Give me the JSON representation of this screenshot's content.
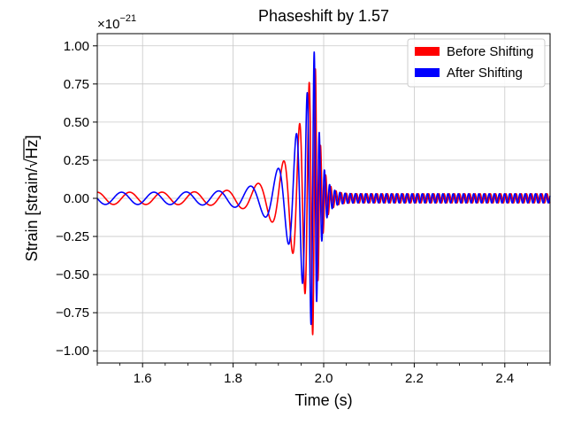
{
  "chart_data": {
    "type": "line",
    "title": "Phaseshift by 1.57",
    "xlabel": "Time (s)",
    "ylabel_text": "Strain [strain/",
    "ylabel_sqrt": "Hz",
    "ylabel_close": "]",
    "y_offset_base": "×10",
    "y_offset_exp": "−21",
    "xlim": [
      1.5,
      2.5
    ],
    "ylim": [
      -1.08,
      1.08
    ],
    "grid": true,
    "legend_placement": "top-right",
    "x_ticks": [
      1.6,
      1.8,
      2.0,
      2.2,
      2.4
    ],
    "x_tick_labels": [
      "1.6",
      "1.8",
      "2.0",
      "2.2",
      "2.4"
    ],
    "y_ticks": [
      -1.0,
      -0.75,
      -0.5,
      -0.25,
      0.0,
      0.25,
      0.5,
      0.75,
      1.0
    ],
    "y_tick_labels": [
      "−1.00",
      "−0.75",
      "−0.50",
      "−0.25",
      "0.00",
      "0.25",
      "0.50",
      "0.75",
      "1.00"
    ],
    "waveform": {
      "merger_time": 1.98,
      "early_amplitude": 0.04,
      "early_frequency_hz": 14,
      "peak_amplitude": 0.98,
      "peak_frequency_hz": 80,
      "ringdown_amplitude": 0.03
    },
    "series": [
      {
        "name": "Before Shifting",
        "color": "#ff0000",
        "phase": 0.0
      },
      {
        "name": "After Shifting",
        "color": "#0000ff",
        "phase": 1.57
      }
    ]
  }
}
